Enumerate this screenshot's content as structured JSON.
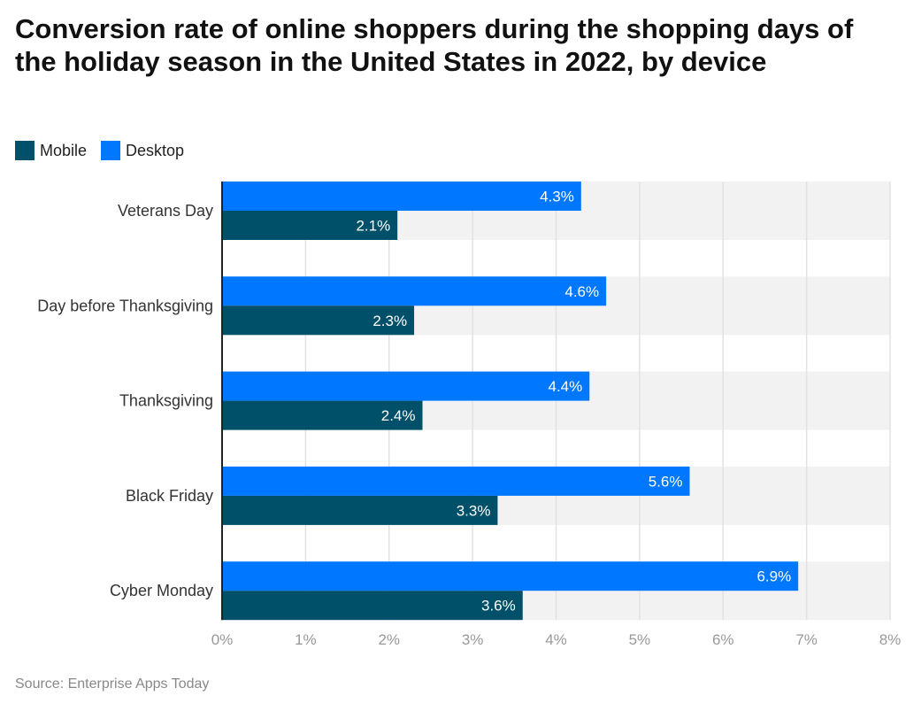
{
  "chart_data": {
    "type": "bar",
    "orientation": "horizontal",
    "title": "Conversion rate of online shoppers during the shopping days of the holiday season in the United States in 2022, by device",
    "categories": [
      "Veterans Day",
      "Day before Thanksgiving",
      "Thanksgiving",
      "Black Friday",
      "Cyber Monday"
    ],
    "series": [
      {
        "name": "Desktop",
        "color": "#0077ff",
        "values": [
          4.3,
          4.6,
          4.4,
          5.6,
          6.9
        ],
        "labels": [
          "4.3%",
          "4.6%",
          "4.4%",
          "5.6%",
          "6.9%"
        ]
      },
      {
        "name": "Mobile",
        "color": "#00506a",
        "values": [
          2.1,
          2.3,
          2.4,
          3.3,
          3.6
        ],
        "labels": [
          "2.1%",
          "2.3%",
          "2.4%",
          "3.3%",
          "3.6%"
        ]
      }
    ],
    "xlim": [
      0,
      8
    ],
    "xticks": [
      "0%",
      "1%",
      "2%",
      "3%",
      "4%",
      "5%",
      "6%",
      "7%",
      "8%"
    ],
    "grid": true,
    "legend": {
      "placement": "top-left",
      "items": [
        {
          "name": "Mobile",
          "color": "#00506a"
        },
        {
          "name": "Desktop",
          "color": "#0077ff"
        }
      ]
    },
    "source": "Source: Enterprise Apps Today"
  }
}
